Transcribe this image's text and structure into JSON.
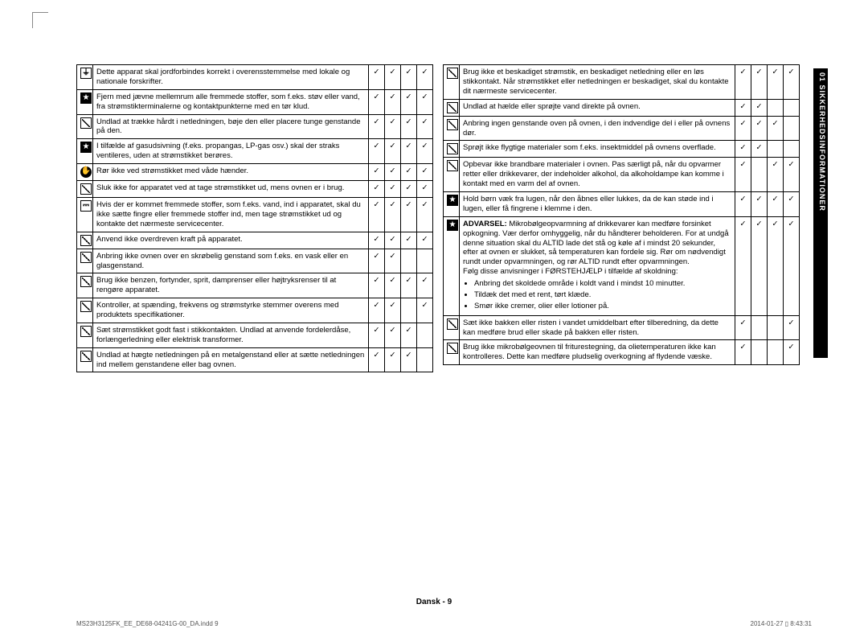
{
  "tab_label": "01  SIKKERHEDSINFORMATIONER",
  "footer_center": "Dansk - 9",
  "footer_left": "MS23H3125FK_EE_DE68-04241G-00_DA.indd   9",
  "footer_right": "2014-01-27   ▯ 8:43:31",
  "checkmark_glyph": "✓",
  "icons": {
    "ground": "⏚",
    "star": "★",
    "slash": "",
    "hand": "✋",
    "plug": "⎓"
  },
  "left_rows": [
    {
      "icon": "ground",
      "text": "Dette apparat skal jordforbindes korrekt i overensstemmelse med lokale og nationale forskrifter.",
      "checks": [
        true,
        true,
        true,
        true
      ]
    },
    {
      "icon": "star",
      "text": "Fjern med jævne mellemrum alle fremmede stoffer, som f.eks. støv eller vand, fra strømstikterminalerne og kontaktpunkterne med en tør klud.",
      "checks": [
        true,
        true,
        true,
        true
      ]
    },
    {
      "icon": "slash",
      "text": "Undlad at trække hårdt i netledningen, bøje den eller placere tunge genstande på den.",
      "checks": [
        true,
        true,
        true,
        true
      ]
    },
    {
      "icon": "star",
      "text": "I tilfælde af gasudsivning (f.eks. propangas, LP-gas osv.) skal der straks ventileres, uden at strømstikket berøres.",
      "checks": [
        true,
        true,
        true,
        true
      ]
    },
    {
      "icon": "hand",
      "text": "Rør ikke ved strømstikket med våde hænder.",
      "checks": [
        true,
        true,
        true,
        true
      ]
    },
    {
      "icon": "slash",
      "text": "Sluk ikke for apparatet ved at tage strømstikket ud, mens ovnen er i brug.",
      "checks": [
        true,
        true,
        true,
        true
      ]
    },
    {
      "icon": "plug",
      "text": "Hvis der er kommet fremmede stoffer, som f.eks. vand, ind i apparatet, skal du ikke sætte fingre eller fremmede stoffer ind, men tage strømstikket ud og kontakte det nærmeste servicecenter.",
      "checks": [
        true,
        true,
        true,
        true
      ]
    },
    {
      "icon": "slash",
      "text": "Anvend ikke overdreven kraft på apparatet.",
      "checks": [
        true,
        true,
        true,
        true
      ]
    },
    {
      "icon": "slash",
      "text": "Anbring ikke ovnen over en skrøbelig genstand som f.eks. en vask eller en glasgenstand.",
      "checks": [
        true,
        true,
        false,
        false
      ]
    },
    {
      "icon": "slash",
      "text": "Brug ikke benzen, fortynder, sprit, damprenser eller højtryksrenser til at rengøre apparatet.",
      "checks": [
        true,
        true,
        true,
        true
      ]
    },
    {
      "icon": "slash",
      "text": "Kontroller, at spænding, frekvens og strømstyrke stemmer overens med produktets specifikationer.",
      "checks": [
        true,
        true,
        false,
        true
      ]
    },
    {
      "icon": "slash",
      "text": "Sæt strømstikket godt fast i stikkontakten. Undlad at anvende fordelerdåse, forlængerledning eller elektrisk transformer.",
      "checks": [
        true,
        true,
        true,
        false
      ]
    },
    {
      "icon": "slash",
      "text": "Undlad at hægte netledningen på en metalgenstand eller at sætte netledningen ind mellem genstandene eller bag ovnen.",
      "checks": [
        true,
        true,
        true,
        false
      ]
    }
  ],
  "right_rows": [
    {
      "icon": "slash",
      "text": "Brug ikke et beskadiget strømstik, en beskadiget netledning eller en løs stikkontakt. Når strømstikket eller netledningen er beskadiget, skal du kontakte dit nærmeste servicecenter.",
      "checks": [
        true,
        true,
        true,
        true
      ]
    },
    {
      "icon": "slash",
      "text": "Undlad at hælde eller sprøjte vand direkte på ovnen.",
      "checks": [
        true,
        true,
        false,
        false
      ]
    },
    {
      "icon": "slash",
      "text": "Anbring ingen genstande oven på ovnen, i den indvendige del i eller på ovnens dør.",
      "checks": [
        true,
        true,
        true,
        false
      ]
    },
    {
      "icon": "slash",
      "text": "Sprøjt ikke flygtige materialer som f.eks. insektmiddel på ovnens overflade.",
      "checks": [
        true,
        true,
        false,
        false
      ]
    },
    {
      "icon": "slash",
      "text": "Opbevar ikke brandbare materialer i ovnen. Pas særligt på, når du opvarmer retter eller drikkevarer, der indeholder alkohol, da alkoholdampe kan komme i kontakt med en varm del af ovnen.",
      "checks": [
        true,
        false,
        true,
        true
      ]
    },
    {
      "icon": "star",
      "text": "Hold børn væk fra lugen, når den åbnes eller lukkes, da de kan støde ind i lugen, eller få fingrene i klemme i den.",
      "checks": [
        true,
        true,
        true,
        true
      ]
    },
    {
      "icon": "star",
      "html": "<b>ADVARSEL:</b> Mikrobølgeopvarmning af drikkevarer kan medføre forsinket opkogning. Vær derfor omhyggelig, når du håndterer beholderen. For at undgå denne situation skal du ALTID lade det stå og køle af i mindst 20 sekunder, efter at ovnen er slukket, så temperaturen kan fordele sig. Rør om nødvendigt rundt under opvarmningen, og rør ALTID rundt efter opvarmningen.<br>Følg disse anvisninger i FØRSTEHJÆLP i tilfælde af skoldning:<ul class='sub-list'><li>Anbring det skoldede område i koldt vand i mindst 10 minutter.</li><li>Tildæk det med et rent, tørt klæde.</li><li>Smør ikke cremer, olier eller lotioner på.</li></ul>",
      "checks": [
        true,
        true,
        true,
        true
      ]
    },
    {
      "icon": "slash",
      "text": "Sæt ikke bakken eller risten i vandet umiddelbart efter tilberedning, da dette kan medføre brud eller skade på bakken eller risten.",
      "checks": [
        true,
        false,
        false,
        true
      ]
    },
    {
      "icon": "slash",
      "text": "Brug ikke mikrobølgeovnen til friturestegning, da olietemperaturen ikke kan kontrolleres. Dette kan medføre pludselig overkogning af flydende væske.",
      "checks": [
        true,
        false,
        false,
        true
      ]
    }
  ]
}
